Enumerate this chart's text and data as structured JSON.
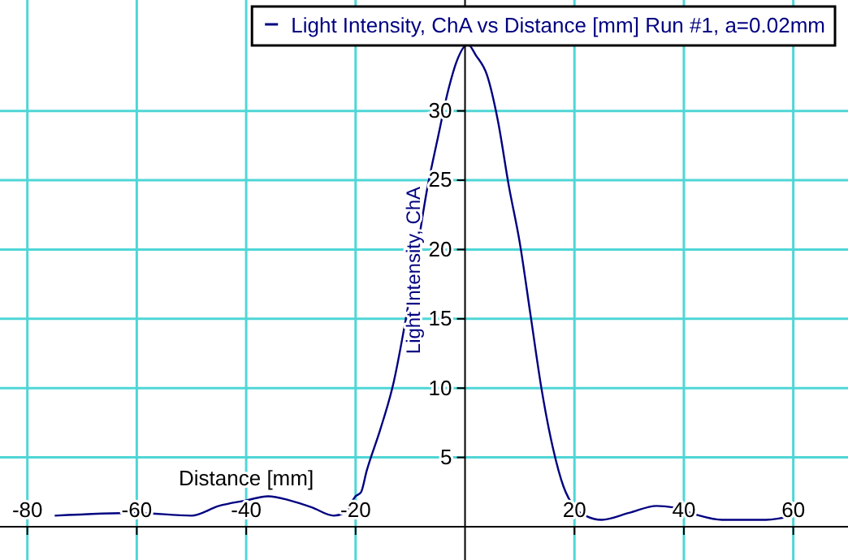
{
  "chart_data": {
    "type": "line",
    "xlabel": "Distance [mm]",
    "ylabel": "Light Intensity, ChA",
    "xlim": [
      -85,
      70
    ],
    "ylim": [
      -2.4,
      38
    ],
    "xticks": [
      -80,
      -60,
      -40,
      -20,
      20,
      40,
      60
    ],
    "yticks": [
      5,
      10,
      15,
      20,
      25,
      30
    ],
    "grid": true,
    "legend": "top right",
    "marker": "none",
    "line_style": "solid",
    "series": [
      {
        "name": "Light Intensity, ChA vs Distance [mm] Run #1, a=0.02mm",
        "color": "#000080",
        "x": [
          -75,
          -60,
          -50,
          -45,
          -40,
          -36,
          -32,
          -28,
          -24,
          -22,
          -20,
          -19,
          -18,
          -15.5,
          -13,
          -11,
          -9,
          -7,
          -5,
          -3,
          -1.5,
          0.5,
          2,
          4,
          6,
          8,
          10,
          12,
          14,
          16,
          18,
          20,
          22,
          25,
          30,
          35,
          38,
          42,
          47,
          55,
          60
        ],
        "values": [
          0.8,
          1.0,
          0.8,
          1.5,
          1.9,
          2.2,
          1.9,
          1.4,
          0.8,
          1.0,
          2.2,
          2.5,
          4.0,
          7,
          10.5,
          14.6,
          19.3,
          24.2,
          28,
          31.6,
          33.6,
          34.8,
          34,
          32.6,
          29.3,
          24.6,
          20.5,
          15.2,
          9.9,
          5.8,
          2.9,
          1.4,
          0.8,
          0.5,
          1.0,
          1.5,
          1.4,
          0.9,
          0.5,
          0.5,
          0.8
        ]
      }
    ]
  }
}
